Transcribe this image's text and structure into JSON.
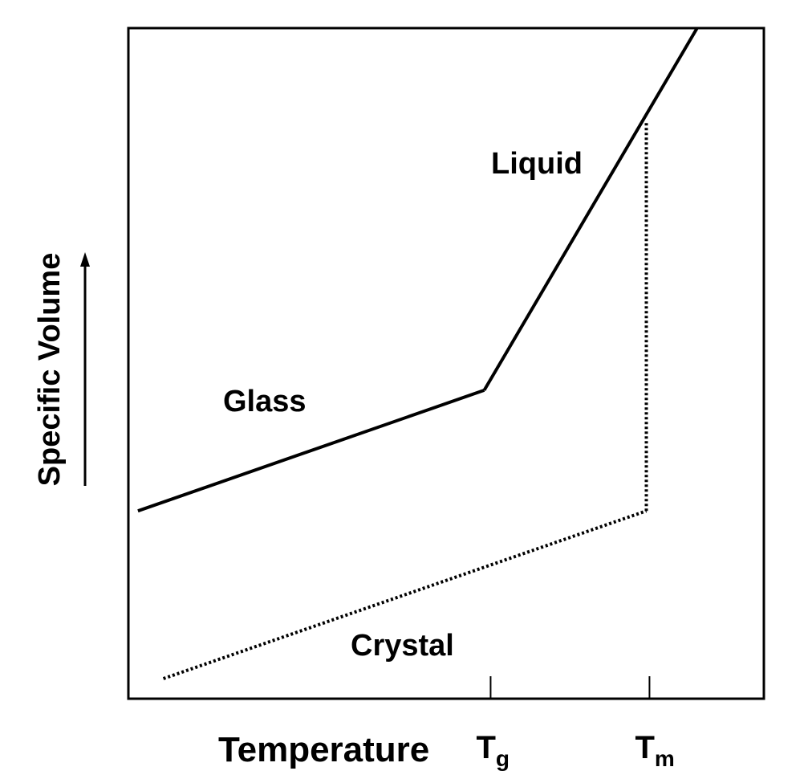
{
  "chart_data": {
    "type": "line",
    "title": "",
    "xlabel": "Temperature",
    "ylabel": "Specific Volume",
    "grid": false,
    "legend": "none",
    "ticks": [
      {
        "id": "tg",
        "main": "T",
        "sub": "g",
        "x": 0.57
      },
      {
        "id": "tm",
        "main": "T",
        "sub": "m",
        "x": 0.82
      }
    ],
    "series": [
      {
        "id": "glass",
        "label": "Glass",
        "style": "solid",
        "points": [
          [
            0.015,
            0.28
          ],
          [
            0.56,
            0.46
          ]
        ]
      },
      {
        "id": "liquid",
        "label": "Liquid",
        "style": "solid",
        "points": [
          [
            0.56,
            0.46
          ],
          [
            0.895,
            1.0
          ]
        ]
      },
      {
        "id": "crystal",
        "label": "Crystal",
        "style": "dotted",
        "points": [
          [
            0.055,
            0.03
          ],
          [
            0.815,
            0.28
          ]
        ]
      },
      {
        "id": "melting",
        "label": "",
        "style": "dotted",
        "points": [
          [
            0.815,
            0.28
          ],
          [
            0.815,
            0.86
          ]
        ]
      }
    ],
    "xlim": [
      0,
      1
    ],
    "ylim": [
      0,
      1
    ],
    "color": "#000000"
  }
}
